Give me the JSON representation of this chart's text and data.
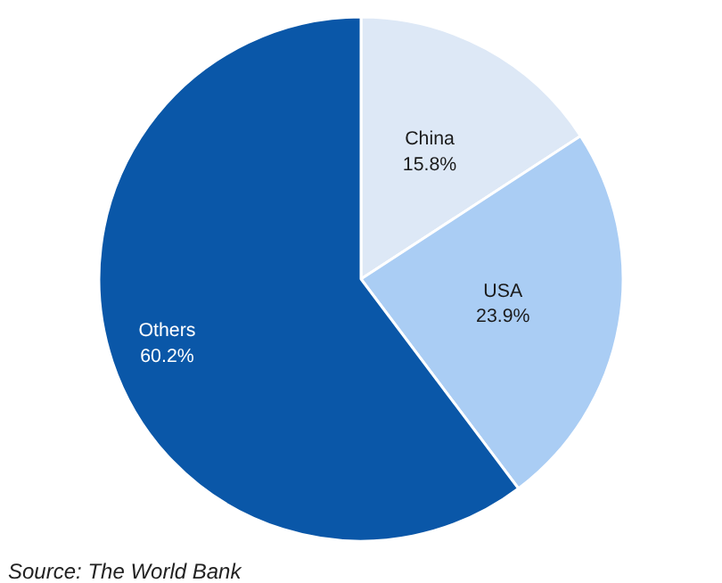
{
  "chart_data": {
    "type": "pie",
    "categories": [
      "China",
      "USA",
      "Others"
    ],
    "values": [
      15.8,
      23.9,
      60.2
    ],
    "colors": [
      "#dde8f6",
      "#aacdf4",
      "#0a57a8"
    ],
    "value_labels": [
      "15.8%",
      "23.9%",
      "60.2%"
    ],
    "annotations": [
      "Source: The World Bank"
    ]
  }
}
